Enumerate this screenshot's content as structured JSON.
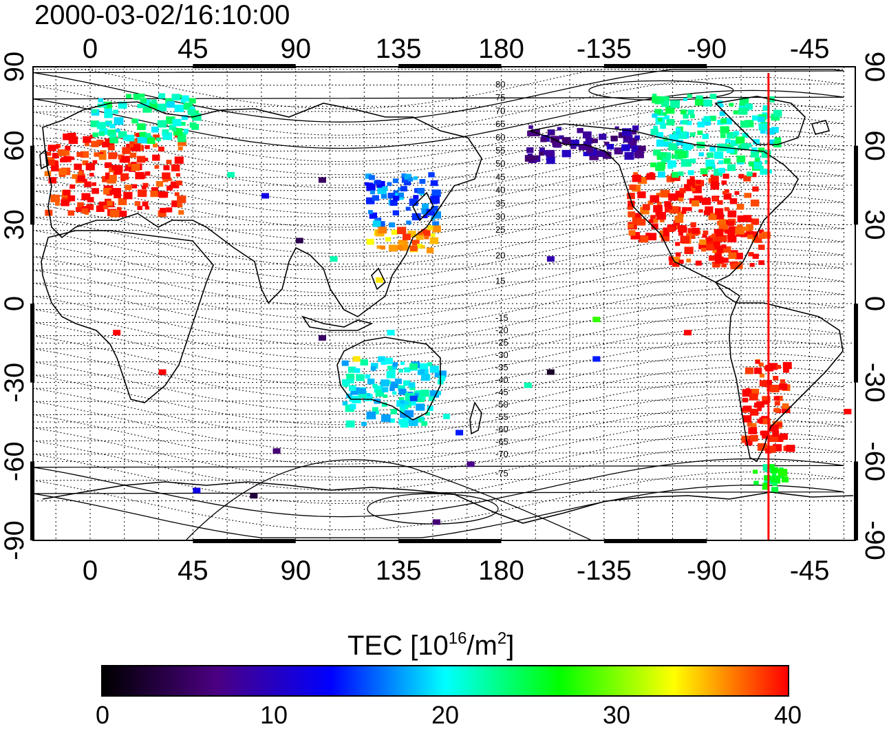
{
  "title": "2000-03-02/16:10:00",
  "map": {
    "projection": "cylindrical",
    "x_axis_top_ticks": [
      "0",
      "45",
      "90",
      "135",
      "180",
      "-135",
      "-90",
      "-45"
    ],
    "x_axis_bottom_ticks": [
      "0",
      "45",
      "90",
      "135",
      "180",
      "-135",
      "-90",
      "-45"
    ],
    "y_axis_left_ticks": [
      "90",
      "60",
      "30",
      "0",
      "-30",
      "-60",
      "-90"
    ],
    "y_axis_right_ticks": [
      "90",
      "60",
      "30",
      "0",
      "-30",
      "-60",
      "-90"
    ],
    "y_tick_values": [
      90,
      60,
      30,
      0,
      -30,
      -60,
      -90
    ],
    "x_tick_lons": [
      0,
      45,
      90,
      135,
      180,
      -135,
      -90,
      -45
    ],
    "lon_range": [
      -25,
      335
    ],
    "lat_range": [
      -90,
      90
    ],
    "grid": true,
    "marker_longitude": -63,
    "marker_color": "#ff0000",
    "contour_labels_north": [
      "80",
      "75",
      "70",
      "65",
      "60",
      "55",
      "50",
      "45",
      "40",
      "35",
      "30",
      "25",
      "20",
      "15"
    ],
    "contour_labels_south": [
      "-15",
      "-20",
      "-25",
      "-30",
      "-35",
      "-40",
      "-45",
      "-50",
      "-55",
      "-60",
      "-65",
      "-70",
      "-75"
    ]
  },
  "colorbar": {
    "label_main": "TEC  [10",
    "label_exp1": "16",
    "label_mid": "/m",
    "label_exp2": "2",
    "label_end": "]",
    "min": 0,
    "max": 40,
    "tick_labels": [
      "0",
      "10",
      "20",
      "30",
      "40"
    ],
    "colors": [
      "#000000",
      "#4b0082",
      "#0000ff",
      "#00ffff",
      "#00ff00",
      "#ffff00",
      "#ff0000"
    ]
  },
  "chart_data": {
    "type": "heatmap",
    "title": "2000-03-02/16:10:00",
    "xlabel": "",
    "ylabel": "",
    "value_label": "TEC [10^16/m^2]",
    "value_range": [
      0,
      40
    ],
    "regions": [
      {
        "lon": [
          -20,
          40
        ],
        "lat": [
          35,
          65
        ],
        "tec": 40
      },
      {
        "lon": [
          0,
          45
        ],
        "lat": [
          62,
          80
        ],
        "tec": 22
      },
      {
        "lon": [
          120,
          150
        ],
        "lat": [
          30,
          50
        ],
        "tec": 16
      },
      {
        "lon": [
          120,
          150
        ],
        "lat": [
          20,
          30
        ],
        "tec": 36
      },
      {
        "lon": [
          -125,
          -70
        ],
        "lat": [
          25,
          50
        ],
        "tec": 40
      },
      {
        "lon": [
          -110,
          -65
        ],
        "lat": [
          15,
          30
        ],
        "tec": 39
      },
      {
        "lon": [
          -75,
          -55
        ],
        "lat": [
          -55,
          -20
        ],
        "tec": 40
      },
      {
        "lon": [
          -70,
          -55
        ],
        "lat": [
          -70,
          -60
        ],
        "tec": 25
      },
      {
        "lon": [
          -170,
          -120
        ],
        "lat": [
          55,
          68
        ],
        "tec": 8
      },
      {
        "lon": [
          -115,
          -60
        ],
        "lat": [
          50,
          80
        ],
        "tec": 22
      },
      {
        "lon": [
          110,
          155
        ],
        "lat": [
          -45,
          -20
        ],
        "tec": 20
      },
      {
        "lon": [
          -25,
          335
        ],
        "lat": [
          -90,
          -85
        ],
        "tec": 12
      }
    ]
  }
}
